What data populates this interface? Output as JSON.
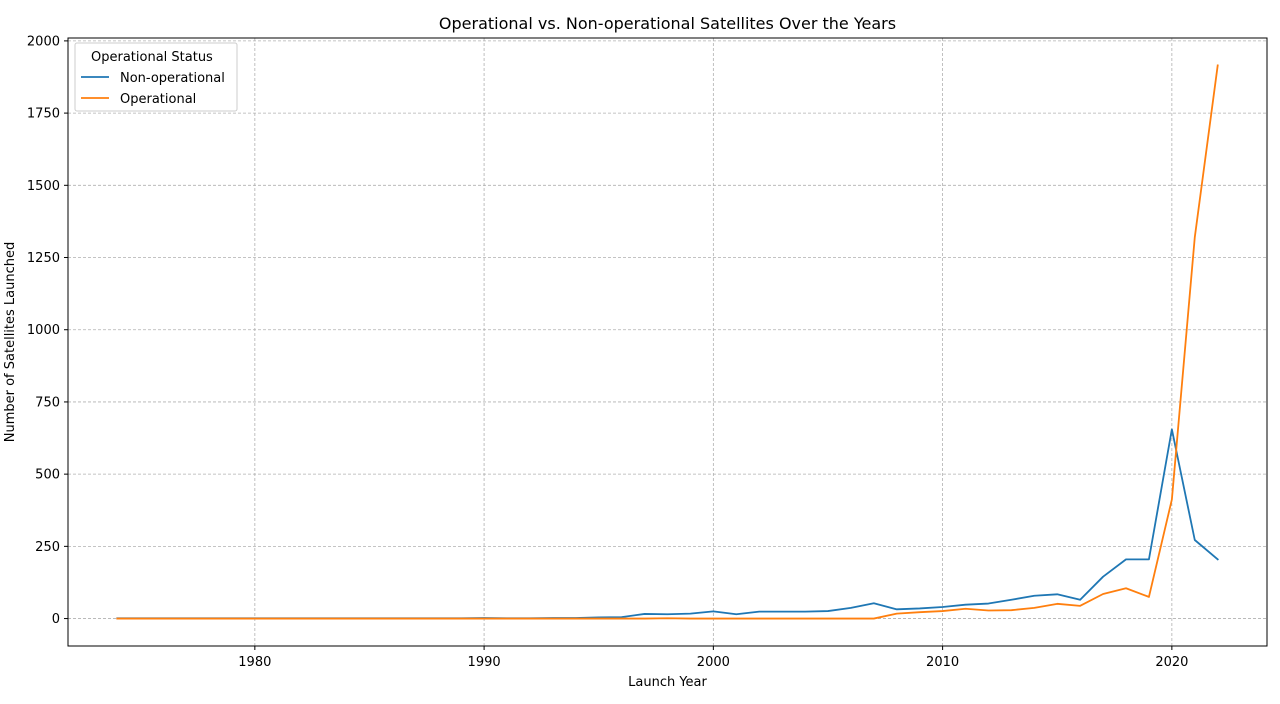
{
  "chart_data": {
    "type": "line",
    "title": "Operational vs. Non-operational Satellites Over the Years",
    "xlabel": "Launch Year",
    "ylabel": "Number of Satellites Launched",
    "xlim": [
      1971.85,
      2024.15
    ],
    "ylim": [
      -95,
      2010
    ],
    "xticks": [
      1980,
      1990,
      2000,
      2010,
      2020
    ],
    "yticks": [
      0,
      250,
      500,
      750,
      1000,
      1250,
      1500,
      1750,
      2000
    ],
    "grid": true,
    "legend": {
      "title": "Operational Status",
      "position": "top-left"
    },
    "x": [
      1974,
      1975,
      1976,
      1977,
      1978,
      1979,
      1980,
      1981,
      1982,
      1983,
      1984,
      1985,
      1986,
      1987,
      1988,
      1989,
      1990,
      1991,
      1992,
      1993,
      1994,
      1995,
      1996,
      1997,
      1998,
      1999,
      2000,
      2001,
      2002,
      2003,
      2004,
      2005,
      2006,
      2007,
      2008,
      2009,
      2010,
      2011,
      2012,
      2013,
      2014,
      2015,
      2016,
      2017,
      2018,
      2019,
      2020,
      2021,
      2022
    ],
    "series": [
      {
        "name": "Non-operational",
        "color": "#1f77b4",
        "values": [
          1,
          1,
          1,
          1,
          1,
          1,
          1,
          1,
          1,
          1,
          1,
          1,
          1,
          1,
          1,
          1,
          2,
          1,
          1,
          2,
          2,
          4,
          5,
          16,
          15,
          17,
          25,
          15,
          24,
          24,
          24,
          26,
          37,
          53,
          32,
          35,
          40,
          48,
          52,
          65,
          79,
          84,
          65,
          145,
          205,
          205,
          655,
          272,
          205
        ]
      },
      {
        "name": "Operational",
        "color": "#ff7f0e",
        "values": [
          0,
          0,
          0,
          0,
          0,
          0,
          0,
          0,
          0,
          0,
          0,
          0,
          0,
          0,
          0,
          0,
          0,
          0,
          0,
          0,
          0,
          0,
          0,
          0,
          1,
          0,
          0,
          0,
          0,
          0,
          0,
          0,
          0,
          0,
          17,
          22,
          26,
          34,
          28,
          29,
          37,
          51,
          44,
          85,
          105,
          75,
          412,
          1320,
          1915
        ]
      }
    ]
  }
}
